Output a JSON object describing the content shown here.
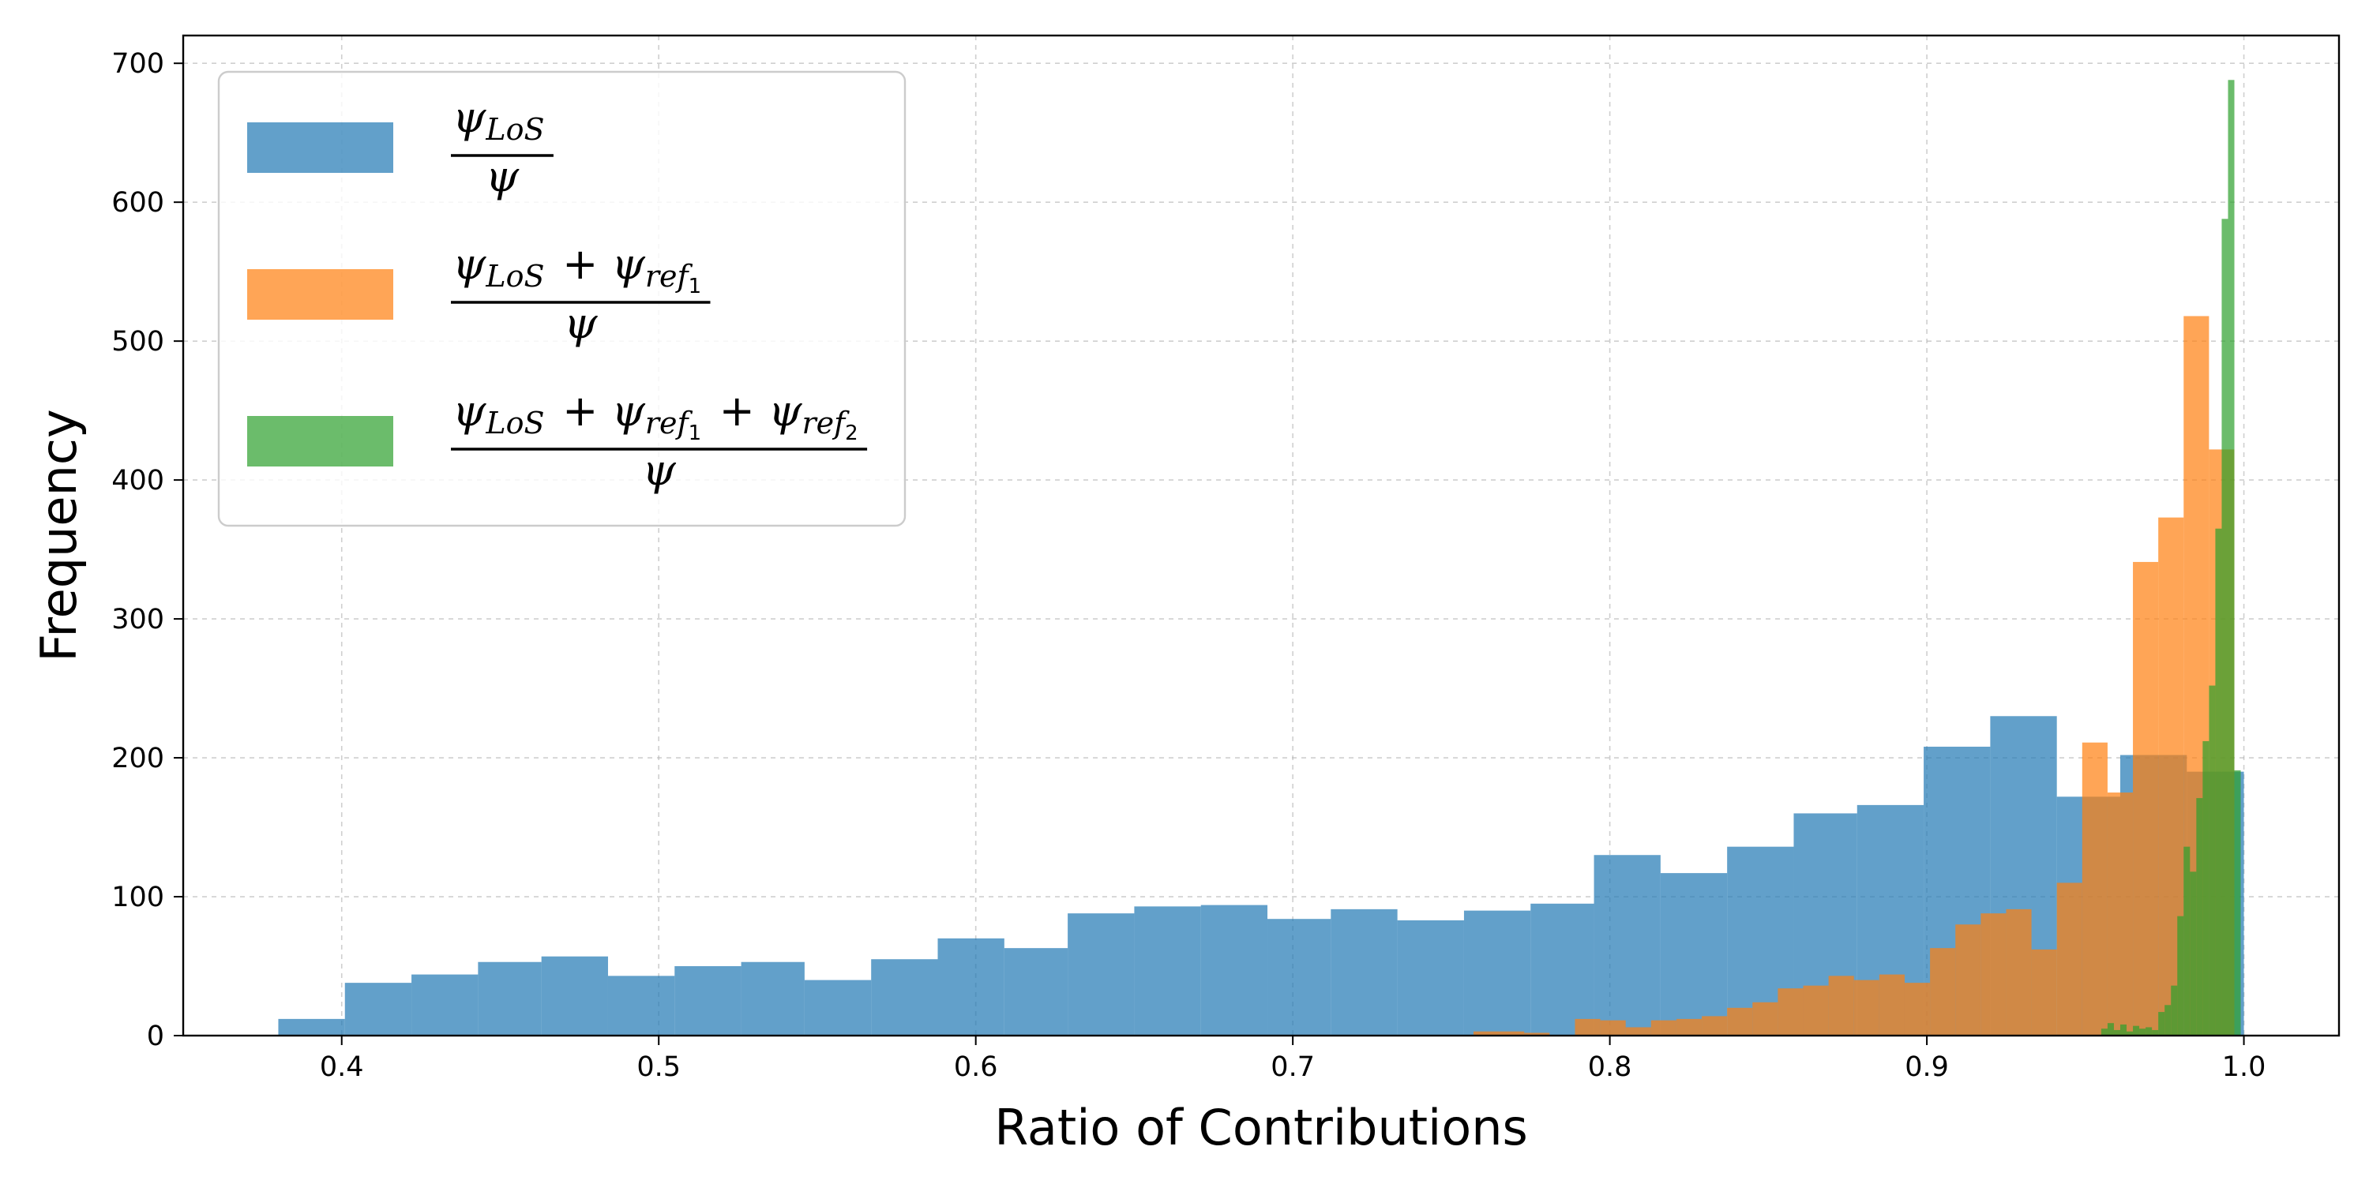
{
  "chart_data": {
    "type": "histogram",
    "xlabel": "Ratio of Contributions",
    "ylabel": "Frequency",
    "xlim": [
      0.35,
      1.03
    ],
    "ylim": [
      0,
      720
    ],
    "xticks": [
      0.4,
      0.5,
      0.6,
      0.7,
      0.8,
      0.9,
      1.0
    ],
    "xtick_labels": [
      "0.4",
      "0.5",
      "0.6",
      "0.7",
      "0.8",
      "0.9",
      "1.0"
    ],
    "yticks": [
      0,
      100,
      200,
      300,
      400,
      500,
      600,
      700
    ],
    "ytick_labels": [
      "0",
      "100",
      "200",
      "300",
      "400",
      "500",
      "600",
      "700"
    ],
    "grid": true,
    "legend_position": "upper-left",
    "series": [
      {
        "legend": {
          "num": [
            "ψ",
            "LoS"
          ],
          "den": "ψ"
        },
        "color": "#1f77b4",
        "opacity": 0.7,
        "bins": [
          {
            "x0": 0.38,
            "x1": 0.401,
            "count": 12
          },
          {
            "x0": 0.401,
            "x1": 0.422,
            "count": 38
          },
          {
            "x0": 0.422,
            "x1": 0.443,
            "count": 44
          },
          {
            "x0": 0.443,
            "x1": 0.463,
            "count": 53
          },
          {
            "x0": 0.463,
            "x1": 0.484,
            "count": 57
          },
          {
            "x0": 0.484,
            "x1": 0.505,
            "count": 43
          },
          {
            "x0": 0.505,
            "x1": 0.526,
            "count": 50
          },
          {
            "x0": 0.526,
            "x1": 0.546,
            "count": 53
          },
          {
            "x0": 0.546,
            "x1": 0.567,
            "count": 40
          },
          {
            "x0": 0.567,
            "x1": 0.588,
            "count": 55
          },
          {
            "x0": 0.588,
            "x1": 0.609,
            "count": 70
          },
          {
            "x0": 0.609,
            "x1": 0.629,
            "count": 63
          },
          {
            "x0": 0.629,
            "x1": 0.65,
            "count": 88
          },
          {
            "x0": 0.65,
            "x1": 0.671,
            "count": 93
          },
          {
            "x0": 0.671,
            "x1": 0.692,
            "count": 94
          },
          {
            "x0": 0.692,
            "x1": 0.712,
            "count": 84
          },
          {
            "x0": 0.712,
            "x1": 0.733,
            "count": 91
          },
          {
            "x0": 0.733,
            "x1": 0.754,
            "count": 83
          },
          {
            "x0": 0.754,
            "x1": 0.775,
            "count": 90
          },
          {
            "x0": 0.775,
            "x1": 0.795,
            "count": 95
          },
          {
            "x0": 0.795,
            "x1": 0.816,
            "count": 130
          },
          {
            "x0": 0.816,
            "x1": 0.837,
            "count": 117
          },
          {
            "x0": 0.837,
            "x1": 0.858,
            "count": 136
          },
          {
            "x0": 0.858,
            "x1": 0.878,
            "count": 160
          },
          {
            "x0": 0.878,
            "x1": 0.899,
            "count": 166
          },
          {
            "x0": 0.899,
            "x1": 0.92,
            "count": 208
          },
          {
            "x0": 0.92,
            "x1": 0.941,
            "count": 230
          },
          {
            "x0": 0.941,
            "x1": 0.961,
            "count": 172
          },
          {
            "x0": 0.961,
            "x1": 0.982,
            "count": 202
          },
          {
            "x0": 0.982,
            "x1": 1.0,
            "count": 190
          }
        ]
      },
      {
        "legend": {
          "num": [
            "ψ",
            "LoS",
            "+",
            "ψ",
            "ref",
            "1"
          ],
          "den": "ψ"
        },
        "color": "#ff7f0e",
        "opacity": 0.7,
        "bins": [
          {
            "x0": 0.757,
            "x1": 0.765,
            "count": 3
          },
          {
            "x0": 0.765,
            "x1": 0.773,
            "count": 3
          },
          {
            "x0": 0.773,
            "x1": 0.781,
            "count": 2
          },
          {
            "x0": 0.781,
            "x1": 0.789,
            "count": 0
          },
          {
            "x0": 0.789,
            "x1": 0.797,
            "count": 12
          },
          {
            "x0": 0.797,
            "x1": 0.805,
            "count": 11
          },
          {
            "x0": 0.805,
            "x1": 0.813,
            "count": 6
          },
          {
            "x0": 0.813,
            "x1": 0.821,
            "count": 11
          },
          {
            "x0": 0.821,
            "x1": 0.829,
            "count": 12
          },
          {
            "x0": 0.829,
            "x1": 0.837,
            "count": 14
          },
          {
            "x0": 0.837,
            "x1": 0.845,
            "count": 20
          },
          {
            "x0": 0.845,
            "x1": 0.853,
            "count": 24
          },
          {
            "x0": 0.853,
            "x1": 0.861,
            "count": 34
          },
          {
            "x0": 0.861,
            "x1": 0.869,
            "count": 36
          },
          {
            "x0": 0.869,
            "x1": 0.877,
            "count": 43
          },
          {
            "x0": 0.877,
            "x1": 0.885,
            "count": 40
          },
          {
            "x0": 0.885,
            "x1": 0.893,
            "count": 44
          },
          {
            "x0": 0.893,
            "x1": 0.901,
            "count": 38
          },
          {
            "x0": 0.901,
            "x1": 0.909,
            "count": 63
          },
          {
            "x0": 0.909,
            "x1": 0.917,
            "count": 80
          },
          {
            "x0": 0.917,
            "x1": 0.925,
            "count": 88
          },
          {
            "x0": 0.925,
            "x1": 0.933,
            "count": 91
          },
          {
            "x0": 0.933,
            "x1": 0.941,
            "count": 62
          },
          {
            "x0": 0.941,
            "x1": 0.949,
            "count": 110
          },
          {
            "x0": 0.949,
            "x1": 0.957,
            "count": 211
          },
          {
            "x0": 0.957,
            "x1": 0.965,
            "count": 175
          },
          {
            "x0": 0.965,
            "x1": 0.973,
            "count": 341
          },
          {
            "x0": 0.973,
            "x1": 0.981,
            "count": 373
          },
          {
            "x0": 0.981,
            "x1": 0.989,
            "count": 518
          },
          {
            "x0": 0.989,
            "x1": 0.997,
            "count": 422
          }
        ]
      },
      {
        "legend": {
          "num": [
            "ψ",
            "LoS",
            "+",
            "ψ",
            "ref",
            "1",
            "+",
            "ψ",
            "ref",
            "2"
          ],
          "den": "ψ"
        },
        "color": "#2ca02c",
        "opacity": 0.7,
        "bins": [
          {
            "x0": 0.955,
            "x1": 0.957,
            "count": 5
          },
          {
            "x0": 0.957,
            "x1": 0.959,
            "count": 9
          },
          {
            "x0": 0.959,
            "x1": 0.961,
            "count": 4
          },
          {
            "x0": 0.961,
            "x1": 0.963,
            "count": 8
          },
          {
            "x0": 0.963,
            "x1": 0.965,
            "count": 3
          },
          {
            "x0": 0.965,
            "x1": 0.967,
            "count": 7
          },
          {
            "x0": 0.967,
            "x1": 0.969,
            "count": 5
          },
          {
            "x0": 0.969,
            "x1": 0.971,
            "count": 6
          },
          {
            "x0": 0.971,
            "x1": 0.973,
            "count": 4
          },
          {
            "x0": 0.973,
            "x1": 0.975,
            "count": 17
          },
          {
            "x0": 0.975,
            "x1": 0.977,
            "count": 22
          },
          {
            "x0": 0.977,
            "x1": 0.979,
            "count": 36
          },
          {
            "x0": 0.979,
            "x1": 0.981,
            "count": 86
          },
          {
            "x0": 0.981,
            "x1": 0.983,
            "count": 136
          },
          {
            "x0": 0.983,
            "x1": 0.985,
            "count": 118
          },
          {
            "x0": 0.985,
            "x1": 0.987,
            "count": 171
          },
          {
            "x0": 0.987,
            "x1": 0.989,
            "count": 212
          },
          {
            "x0": 0.989,
            "x1": 0.991,
            "count": 252
          },
          {
            "x0": 0.991,
            "x1": 0.993,
            "count": 365
          },
          {
            "x0": 0.993,
            "x1": 0.995,
            "count": 588
          },
          {
            "x0": 0.995,
            "x1": 0.997,
            "count": 688
          },
          {
            "x0": 0.997,
            "x1": 0.999,
            "count": 191
          }
        ]
      }
    ]
  }
}
